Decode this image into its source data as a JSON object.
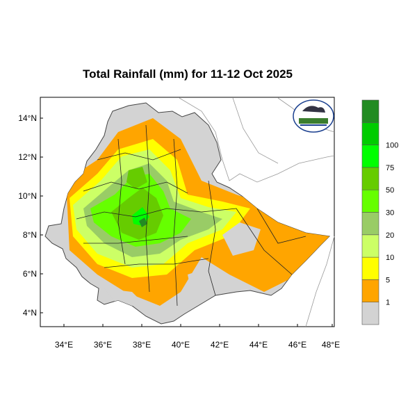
{
  "title": "Total Rainfall (mm) for 11-12 Oct 2025",
  "y_ticks": [
    "14°N",
    "12°N",
    "10°N",
    "8°N",
    "6°N",
    "4°N"
  ],
  "x_ticks": [
    "34°E",
    "36°E",
    "38°E",
    "40°E",
    "42°E",
    "44°E",
    "46°E",
    "48°E"
  ],
  "legend": {
    "colors": [
      "#d3d3d3",
      "#ffa500",
      "#ffff00",
      "#ccff66",
      "#99cc66",
      "#66ff00",
      "#66cc00",
      "#00ff00",
      "#00cc00",
      "#228b22"
    ],
    "labels": [
      "1",
      "5",
      "10",
      "20",
      "30",
      "50",
      "75",
      "100"
    ]
  },
  "colors": {
    "land": "#d3d3d3",
    "orange": "#ffa500",
    "yellow": "#ffff00",
    "light_green": "#ccff66",
    "olive_green": "#99cc66",
    "bright_green": "#66ff00",
    "green": "#66cc00",
    "lime": "#00ff00",
    "dark_green": "#228b22"
  }
}
